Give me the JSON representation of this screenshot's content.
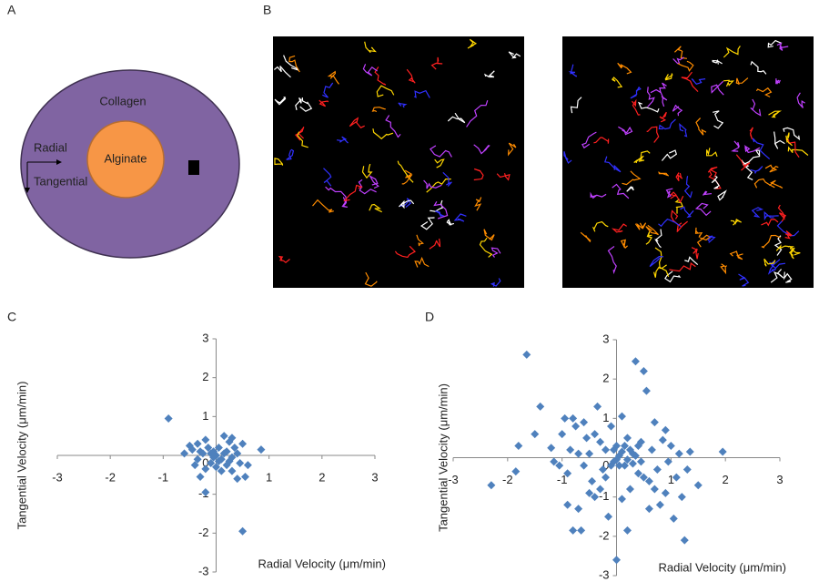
{
  "figure": {
    "panel_labels": [
      "A",
      "B",
      "C",
      "D"
    ],
    "diagram": {
      "outer": "Collagen",
      "inner": "Alginate",
      "radial": "Radial",
      "tangential": "Tangential"
    }
  },
  "chart_data": [
    {
      "type": "scatter",
      "xlabel": "Radial Velocity (μm/min)",
      "ylabel": "Tangential Velocity (μm/min)",
      "color": "#4f81bd",
      "xlim": [
        -3,
        3
      ],
      "ylim": [
        -3,
        3
      ],
      "xticks": [
        -3,
        -2,
        -1,
        1,
        2,
        3
      ],
      "yticks": [
        -3,
        -2,
        -1,
        0,
        1,
        2,
        3
      ],
      "x": [
        -0.9,
        -0.5,
        -0.45,
        -0.35,
        -0.3,
        -0.2,
        -0.15,
        -0.1,
        -0.05,
        0,
        0.05,
        0.1,
        0.15,
        0.2,
        0.25,
        0.3,
        0.35,
        0.4,
        0.45,
        0.5,
        0.85,
        -0.6,
        -0.4,
        -0.3,
        -0.2,
        -0.1,
        0,
        0.1,
        0.2,
        0.3,
        0.4,
        0.55,
        0.6,
        -0.2,
        0.5,
        -0.35,
        0.05,
        0.15,
        -0.05,
        0.25,
        0.3,
        -0.25
      ],
      "values": [
        0.95,
        0.25,
        0.15,
        0.3,
        0.1,
        0.4,
        0.2,
        0.05,
        0.1,
        0,
        0.2,
        -0.1,
        0.5,
        0.1,
        0.35,
        -0.05,
        0.2,
        0.05,
        -0.2,
        0.3,
        0.15,
        0.05,
        -0.25,
        -0.55,
        -0.35,
        -0.2,
        -0.3,
        -0.4,
        -0.25,
        -0.4,
        -0.6,
        -0.55,
        -0.25,
        -0.95,
        -1.95,
        -0.1,
        -0.15,
        0.05,
        -0.05,
        -0.15,
        0.45,
        0.05
      ]
    },
    {
      "type": "scatter",
      "xlabel": "Radial Velocity (μm/min)",
      "ylabel": "Tangential Velocity (μm/min)",
      "color": "#4f81bd",
      "xlim": [
        -3,
        3
      ],
      "ylim": [
        -3,
        3
      ],
      "xticks": [
        -3,
        -2,
        -1,
        1,
        2,
        3
      ],
      "yticks": [
        -3,
        -2,
        -1,
        0,
        1,
        2,
        3
      ],
      "x": [
        -1.65,
        -2.3,
        -1.85,
        -1.8,
        -1.5,
        -1.4,
        -1.2,
        -1.15,
        -1.0,
        -0.95,
        -0.9,
        -0.85,
        -0.8,
        -0.75,
        -0.7,
        -0.65,
        -0.8,
        -0.9,
        -0.6,
        -0.55,
        -0.5,
        -0.45,
        -0.4,
        -0.35,
        -0.3,
        -0.25,
        -0.2,
        -0.15,
        -0.1,
        -0.05,
        0,
        0.05,
        0.1,
        0.15,
        0.2,
        0.25,
        0.3,
        0.35,
        0.4,
        0.45,
        0.5,
        0.55,
        0.6,
        0.65,
        0.7,
        0.75,
        0.8,
        0.85,
        0.9,
        0.95,
        1.0,
        1.05,
        1.1,
        1.15,
        1.2,
        1.25,
        1.3,
        1.35,
        1.95,
        1.5,
        0.2,
        0.1,
        -0.05,
        0.05,
        0.3,
        0.15,
        0.25,
        -0.1,
        0,
        0.35,
        0.4,
        0.45,
        -0.2,
        -0.3,
        0.1,
        0,
        0.2,
        -0.5,
        0.6,
        0.7,
        0.5,
        -0.6,
        -1.05,
        -0.7,
        0.9,
        -0.4
      ],
      "values": [
        2.62,
        -0.7,
        -0.35,
        0.3,
        0.6,
        1.3,
        0.25,
        -0.1,
        0.6,
        1.0,
        -0.4,
        0.2,
        1.0,
        0.8,
        -1.3,
        -1.85,
        -1.85,
        -1.2,
        -0.2,
        0.5,
        0.1,
        -0.6,
        -1.0,
        1.3,
        0.4,
        -0.3,
        0.2,
        -1.5,
        0.8,
        -0.1,
        0.3,
        0.05,
        1.05,
        -0.2,
        0.5,
        -0.8,
        0.1,
        2.45,
        -0.4,
        0.4,
        2.2,
        1.7,
        -0.6,
        0.2,
        0.9,
        -0.3,
        -1.2,
        0.45,
        -0.9,
        -0.1,
        0.3,
        -1.55,
        -0.5,
        0.1,
        -1.0,
        -2.1,
        -0.3,
        0.15,
        0.15,
        -0.7,
        -0.05,
        0.15,
        0.2,
        -0.2,
        -0.15,
        0.3,
        0.2,
        -0.2,
        -0.05,
        0.05,
        0.3,
        -0.1,
        -0.5,
        -0.8,
        -1.05,
        -2.6,
        -1.85,
        -0.9,
        -1.3,
        -0.8,
        -0.5,
        0.9,
        -0.2,
        0.1,
        0.7,
        0.6
      ]
    }
  ]
}
